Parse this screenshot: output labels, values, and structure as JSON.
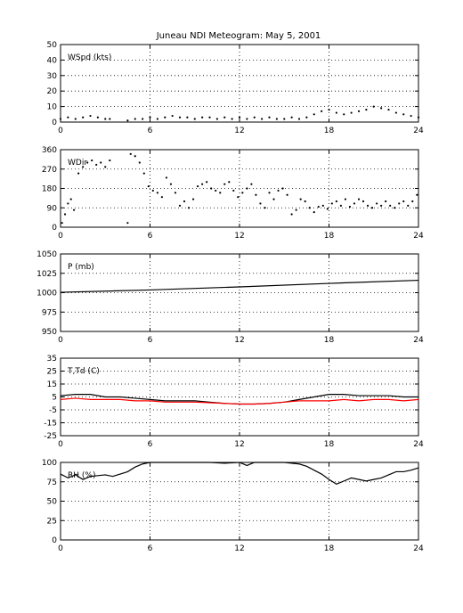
{
  "title": "Juneau NDI Meteogram:        May  5, 2001",
  "chart_data": [
    {
      "id": "wspd",
      "type": "scatter",
      "label": "WSpd (kts)",
      "xlim": [
        0,
        24
      ],
      "ylim": [
        0,
        50
      ],
      "yticks": [
        0,
        10,
        20,
        30,
        40,
        50
      ],
      "xticks": [
        0,
        6,
        12,
        18,
        24
      ],
      "grid": true,
      "series": [
        {
          "color": "#000000",
          "style": "dots",
          "x": [
            0,
            0.5,
            1,
            1.5,
            2,
            2.5,
            3,
            3.3,
            4.5,
            5,
            5.5,
            6,
            6.5,
            7,
            7.5,
            8,
            8.5,
            9,
            9.5,
            10,
            10.5,
            11,
            11.5,
            12,
            12.5,
            13,
            13.5,
            14,
            14.5,
            15,
            15.5,
            16,
            16.5,
            17,
            17.5,
            18,
            18.5,
            19,
            19.5,
            20,
            20.5,
            21,
            21.5,
            22,
            22.5,
            23,
            23.5,
            24
          ],
          "y": [
            2,
            3,
            2,
            3,
            4,
            3,
            2,
            2,
            1,
            2,
            2,
            3,
            2,
            3,
            4,
            3,
            3,
            2,
            3,
            3,
            2,
            3,
            2,
            3,
            2,
            3,
            2,
            3,
            2,
            2,
            3,
            2,
            3,
            5,
            7,
            8,
            6,
            5,
            6,
            7,
            8,
            10,
            9,
            8,
            6,
            5,
            4,
            3
          ]
        }
      ]
    },
    {
      "id": "wdir",
      "type": "scatter",
      "label": "WDir",
      "xlim": [
        0,
        24
      ],
      "ylim": [
        0,
        360
      ],
      "yticks": [
        0,
        90,
        180,
        270,
        360
      ],
      "xticks": [
        0,
        6,
        12,
        18,
        24
      ],
      "grid": true,
      "series": [
        {
          "color": "#000000",
          "style": "dots",
          "x": [
            0.1,
            0.3,
            0.5,
            0.7,
            0.9,
            1.2,
            1.5,
            1.8,
            2.1,
            2.4,
            2.7,
            3.0,
            3.3,
            4.5,
            4.7,
            5.0,
            5.3,
            5.6,
            5.9,
            6.2,
            6.5,
            6.8,
            7.1,
            7.4,
            7.7,
            8.0,
            8.3,
            8.6,
            8.9,
            9.2,
            9.5,
            9.8,
            10.1,
            10.4,
            10.7,
            11.0,
            11.3,
            11.6,
            11.9,
            12.2,
            12.5,
            12.8,
            13.1,
            13.4,
            13.7,
            14.0,
            14.3,
            14.6,
            14.9,
            15.2,
            15.5,
            15.8,
            16.1,
            16.4,
            16.7,
            17.0,
            17.3,
            17.6,
            17.9,
            18.2,
            18.5,
            18.8,
            19.1,
            19.4,
            19.7,
            20.0,
            20.3,
            20.6,
            20.9,
            21.2,
            21.5,
            21.8,
            22.1,
            22.4,
            22.7,
            23.0,
            23.3,
            23.6,
            23.9
          ],
          "y": [
            20,
            60,
            110,
            130,
            80,
            250,
            280,
            300,
            310,
            290,
            300,
            280,
            310,
            20,
            340,
            330,
            300,
            250,
            190,
            170,
            160,
            140,
            230,
            200,
            160,
            100,
            120,
            90,
            130,
            190,
            200,
            210,
            180,
            170,
            160,
            200,
            210,
            170,
            140,
            160,
            180,
            200,
            150,
            110,
            90,
            160,
            130,
            170,
            180,
            150,
            60,
            80,
            130,
            120,
            90,
            70,
            95,
            100,
            85,
            110,
            120,
            100,
            130,
            95,
            110,
            130,
            120,
            100,
            90,
            110,
            100,
            120,
            100,
            90,
            110,
            120,
            100,
            120,
            150
          ]
        }
      ]
    },
    {
      "id": "pres",
      "type": "line",
      "label": "P (mb)",
      "xlim": [
        0,
        24
      ],
      "ylim": [
        950,
        1050
      ],
      "yticks": [
        950,
        975,
        1000,
        1025,
        1050
      ],
      "xticks": [
        0,
        6,
        12,
        18,
        24
      ],
      "grid": true,
      "series": [
        {
          "color": "#000000",
          "style": "line",
          "x": [
            0,
            6,
            12,
            18,
            24
          ],
          "y": [
            1000.5,
            1003.5,
            1007.5,
            1012.0,
            1016.0
          ]
        }
      ]
    },
    {
      "id": "temp",
      "type": "line",
      "label": "T,Td (C)",
      "xlim": [
        0,
        24
      ],
      "ylim": [
        -25,
        35
      ],
      "yticks": [
        -25,
        -15,
        -5,
        5,
        15,
        25,
        35
      ],
      "xticks": [
        0,
        6,
        12,
        18,
        24
      ],
      "grid": true,
      "series": [
        {
          "color": "#000000",
          "style": "line",
          "x": [
            0,
            1,
            2,
            3,
            4,
            5,
            6,
            7,
            8,
            9,
            10,
            11,
            12,
            13,
            14,
            15,
            16,
            17,
            18,
            19,
            20,
            21,
            22,
            23,
            24
          ],
          "y": [
            6,
            7,
            7,
            5,
            5,
            4,
            3,
            2,
            2,
            2,
            1,
            0,
            -0.5,
            -0.5,
            0,
            1,
            3,
            5,
            7,
            7,
            6,
            6,
            6,
            5,
            5
          ]
        },
        {
          "color": "#ff0000",
          "style": "line",
          "x": [
            0,
            1,
            2,
            3,
            4,
            5,
            6,
            7,
            8,
            9,
            10,
            11,
            12,
            13,
            14,
            15,
            16,
            17,
            18,
            19,
            20,
            21,
            22,
            23,
            24
          ],
          "y": [
            3,
            4,
            3,
            3,
            3,
            2,
            2,
            1,
            1,
            1,
            0.5,
            0,
            -0.5,
            -0.5,
            0,
            1,
            2,
            2,
            2,
            3,
            2,
            3,
            3,
            2,
            3
          ]
        }
      ]
    },
    {
      "id": "rh",
      "type": "line",
      "label": "RH (%)",
      "xlim": [
        0,
        24
      ],
      "ylim": [
        0,
        100
      ],
      "yticks": [
        0,
        25,
        50,
        75,
        100
      ],
      "xticks": [
        0,
        6,
        12,
        18,
        24
      ],
      "grid": true,
      "series": [
        {
          "color": "#000000",
          "style": "line",
          "x": [
            0,
            0.5,
            1,
            1.5,
            2,
            2.5,
            3,
            3.5,
            4,
            4.5,
            5,
            5.5,
            6,
            7,
            8,
            9,
            10,
            11,
            12,
            12.5,
            13,
            14,
            15,
            16,
            16.5,
            17,
            17.5,
            18,
            18.5,
            19,
            19.5,
            20,
            20.5,
            21,
            21.5,
            22,
            22.5,
            23,
            23.5,
            24
          ],
          "y": [
            85,
            80,
            84,
            78,
            82,
            83,
            84,
            82,
            85,
            88,
            94,
            98,
            100,
            100,
            100,
            100,
            100,
            99,
            100,
            96,
            100,
            100,
            100,
            98,
            95,
            90,
            85,
            78,
            72,
            76,
            80,
            78,
            76,
            78,
            80,
            84,
            88,
            88,
            90,
            93
          ]
        }
      ]
    }
  ]
}
